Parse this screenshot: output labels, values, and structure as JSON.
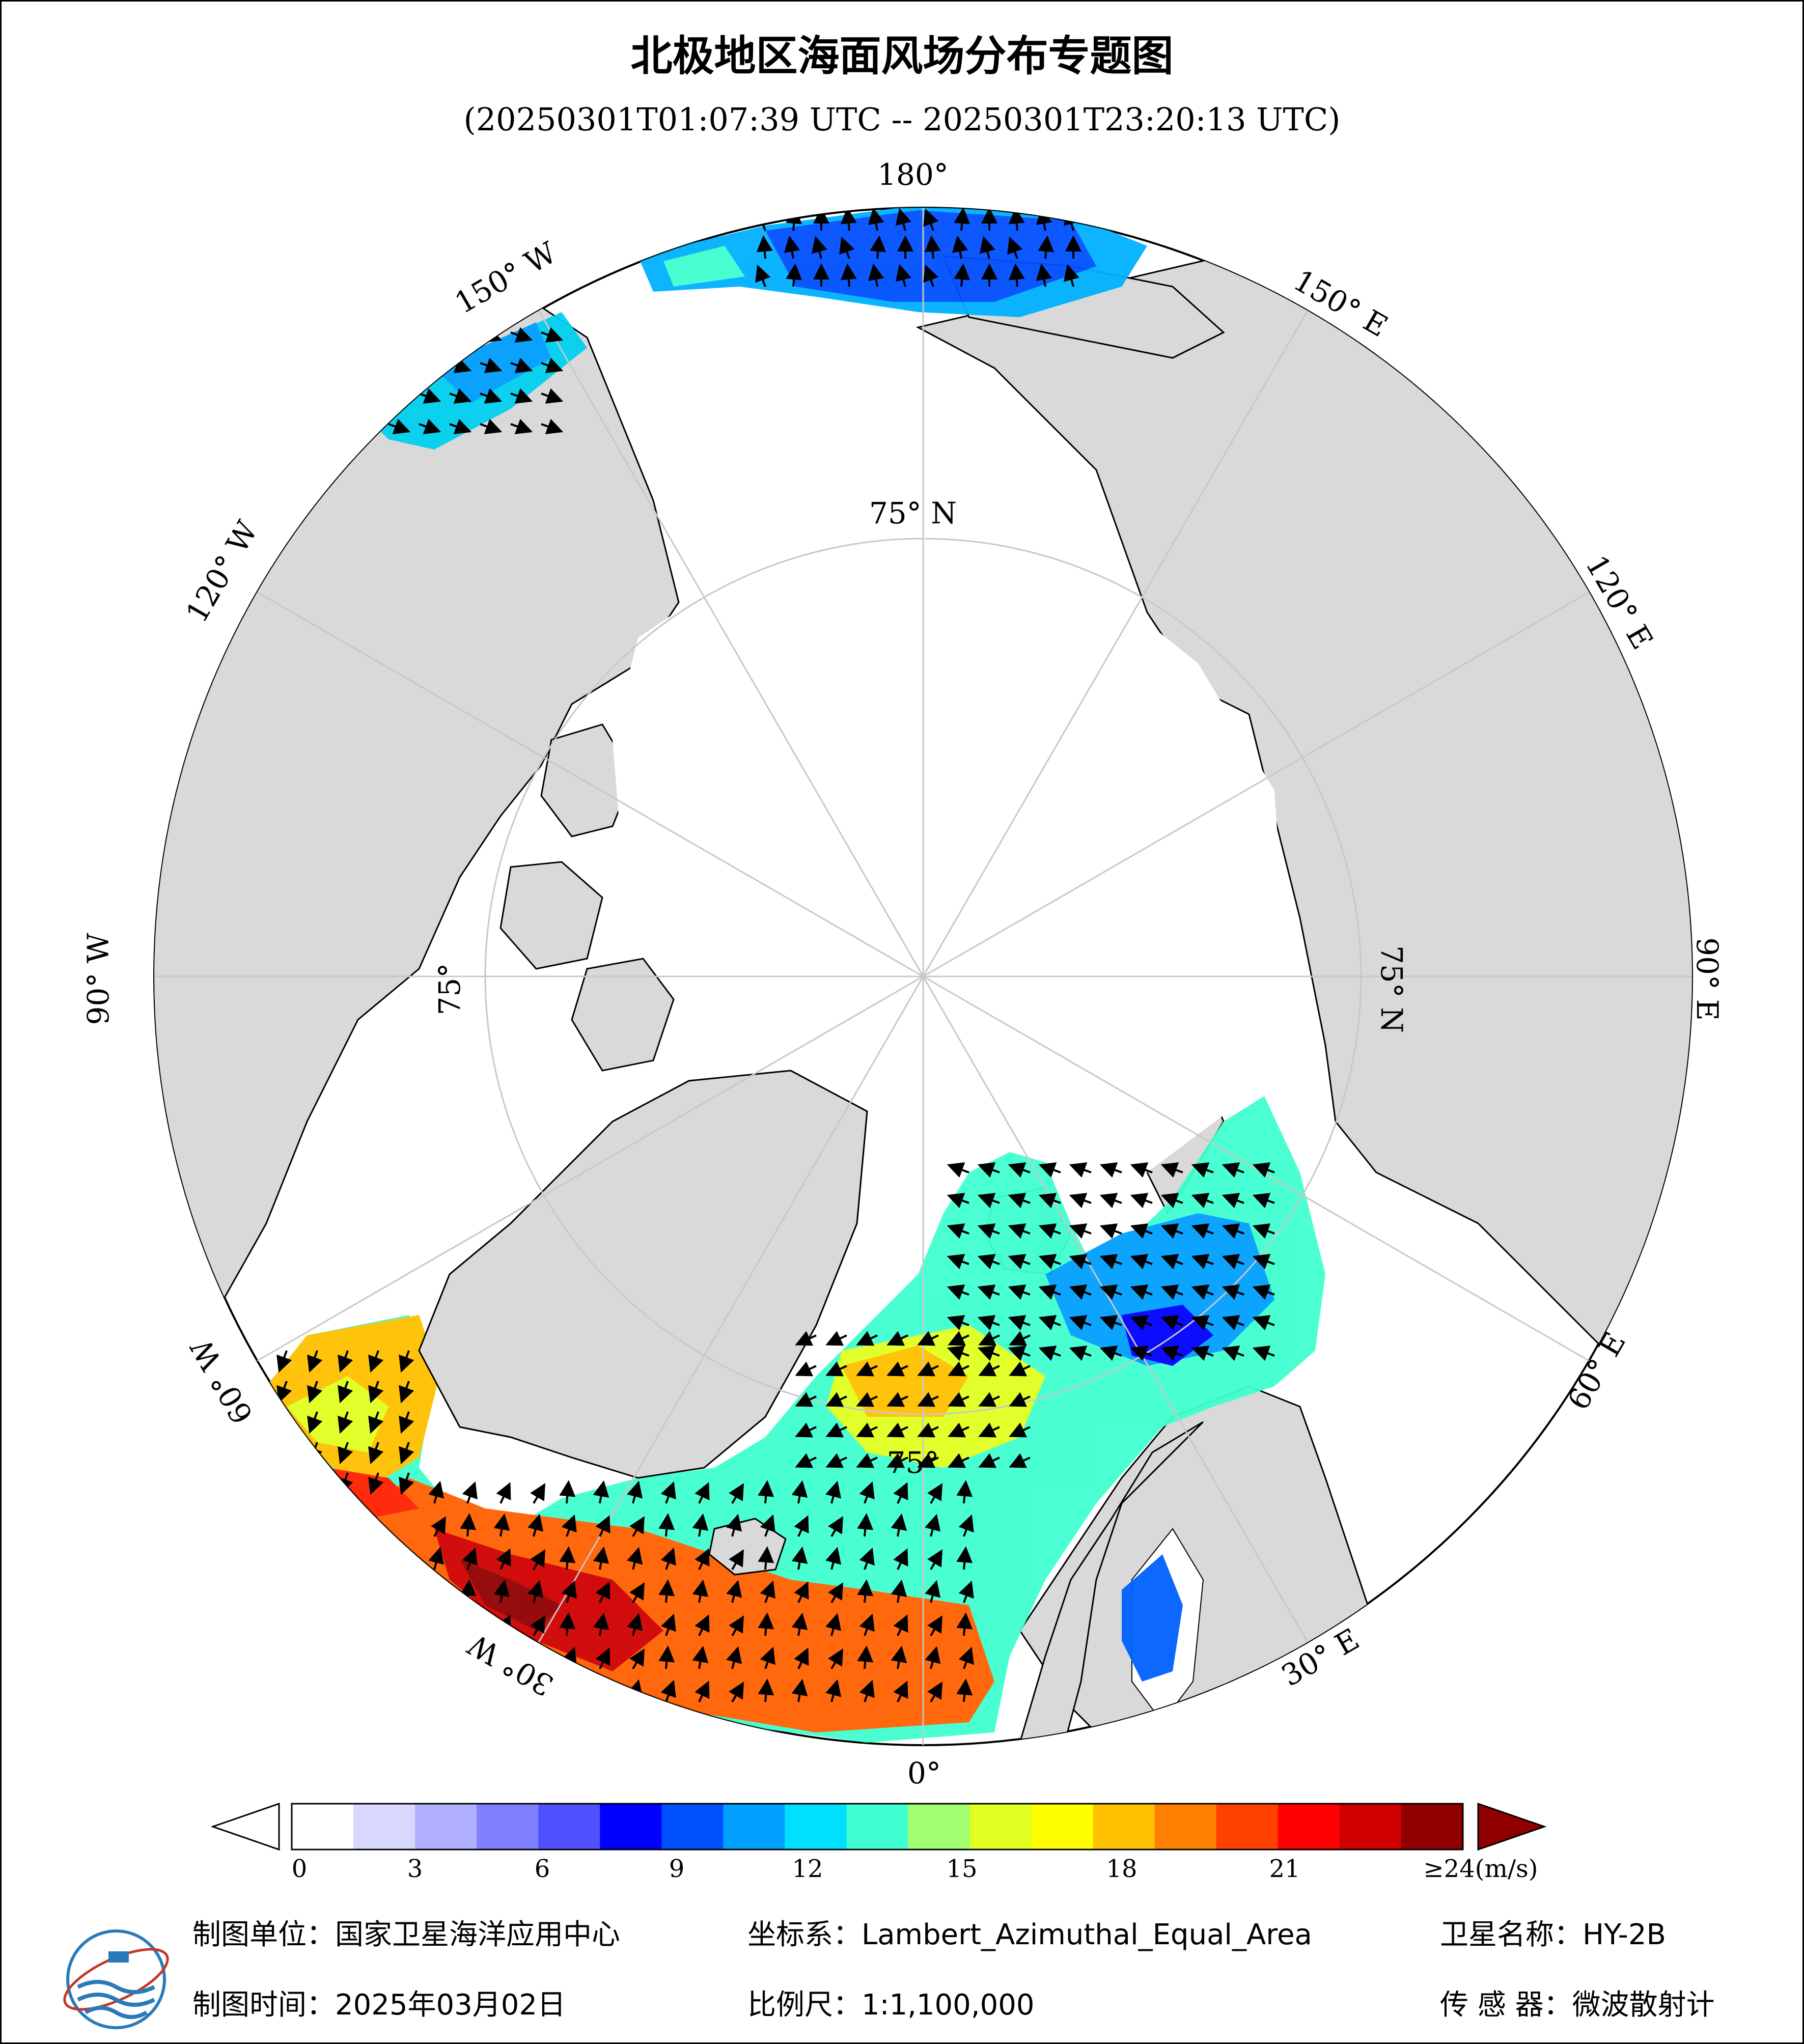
{
  "title": "北极地区海面风场分布专题图",
  "time_range": "(20250301T01:07:39 UTC -- 20250301T23:20:13 UTC)",
  "map": {
    "projection": "Lambert_Azimuthal_Equal_Area",
    "longitude_labels": [
      "180°",
      "150° E",
      "120° E",
      "90° E",
      "60° E",
      "30° E",
      "0°",
      "30° W",
      "60° W",
      "90° W",
      "120° W",
      "150° W"
    ],
    "latitude_labels": [
      "75° N",
      "75° N",
      "75°",
      "75°"
    ],
    "colors": {
      "land": "#d9d9d9",
      "ocean_no_data": "#ffffff",
      "grid": "#c8c8c8",
      "arrow": "#000000"
    }
  },
  "colorbar": {
    "unit_label": "≥24(m/s)",
    "ticks": [
      "0",
      "3",
      "6",
      "9",
      "12",
      "15",
      "18",
      "21"
    ],
    "range": [
      0,
      24
    ],
    "colors": [
      "#ffffff",
      "#d8d8ff",
      "#b0b0ff",
      "#8080ff",
      "#5050ff",
      "#0000ff",
      "#0050ff",
      "#00a0ff",
      "#00e0ff",
      "#40ffd0",
      "#a0ff70",
      "#e0ff20",
      "#ffff00",
      "#ffc000",
      "#ff8000",
      "#ff4000",
      "#ff0000",
      "#d00000",
      "#900000"
    ]
  },
  "footer": {
    "producer": "制图单位：国家卫星海洋应用中心",
    "coord_system": "坐标系：Lambert_Azimuthal_Equal_Area",
    "satellite": "卫星名称：HY-2B",
    "date": "制图时间：2025年03月02日",
    "scale": "比例尺：1:1,100,000",
    "sensor": "传 感 器：微波散射计"
  }
}
